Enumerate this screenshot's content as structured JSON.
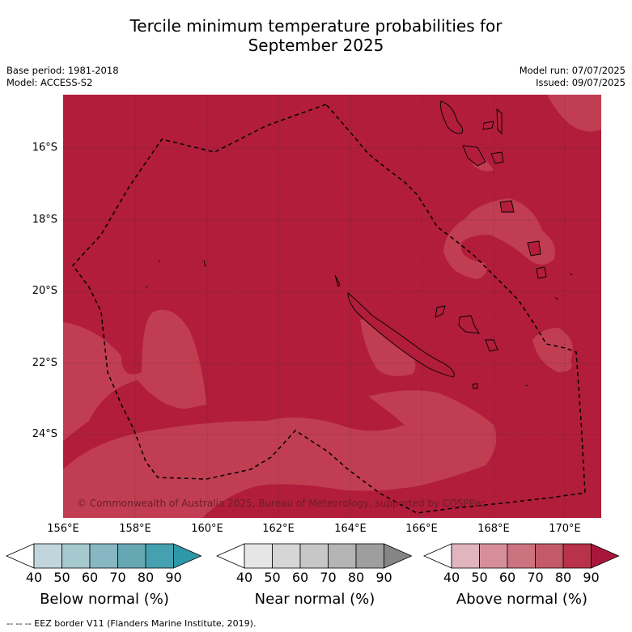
{
  "title_line1": "Tercile minimum temperature probabilities for",
  "title_line2": "September 2025",
  "meta": {
    "base_period": "Base period: 1981-2018",
    "model": "Model: ACCESS-S2",
    "model_run": "Model run: 07/07/2025",
    "issued": "Issued: 09/07/2025"
  },
  "axes": {
    "lat_labels": [
      "16°S",
      "18°S",
      "20°S",
      "22°S",
      "24°S"
    ],
    "lon_labels": [
      "156°E",
      "158°E",
      "160°E",
      "162°E",
      "164°E",
      "166°E",
      "168°E",
      "170°E"
    ]
  },
  "copyright": "© Commonwealth of Australia 2025, Bureau of Meteorology, supported by COSPPac",
  "colorbars": [
    {
      "title": "Below normal (%)",
      "ticks": [
        "40",
        "50",
        "60",
        "70",
        "80",
        "90"
      ],
      "colors": [
        "#ffffff",
        "#c0d6dc",
        "#a6c8cf",
        "#87b7c2",
        "#66a7b4",
        "#45a0b0",
        "#2e97a8"
      ]
    },
    {
      "title": "Near normal (%)",
      "ticks": [
        "40",
        "50",
        "60",
        "70",
        "80",
        "90"
      ],
      "colors": [
        "#ffffff",
        "#e6e6e6",
        "#d6d6d6",
        "#c7c7c7",
        "#b4b4b4",
        "#9e9e9e",
        "#858585"
      ]
    },
    {
      "title": "Above normal (%)",
      "ticks": [
        "40",
        "50",
        "60",
        "70",
        "80",
        "90"
      ],
      "colors": [
        "#ffffff",
        "#e0b5bd",
        "#d68f99",
        "#cc7380",
        "#c4596a",
        "#b8324a",
        "#a8173a"
      ]
    }
  ],
  "colors": {
    "above_80": "#b11d3b",
    "above_70": "#c13d52"
  },
  "footer": "--  --  -- EEZ border V11 (Flanders Marine Institute, 2019)."
}
